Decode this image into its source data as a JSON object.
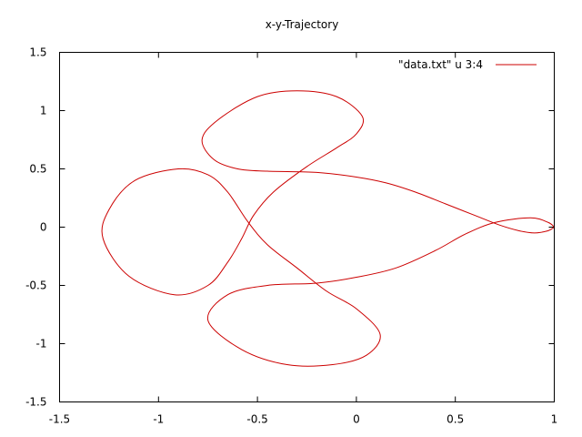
{
  "chart_data": {
    "type": "line",
    "title": "x-y-Trajectory",
    "xlabel": "",
    "ylabel": "",
    "xlim": [
      -1.5,
      1
    ],
    "ylim": [
      -1.5,
      1.5
    ],
    "x_ticks": [
      {
        "value": -1.5,
        "label": "-1.5"
      },
      {
        "value": -1,
        "label": "-1"
      },
      {
        "value": -0.5,
        "label": "-0.5"
      },
      {
        "value": 0,
        "label": "0"
      },
      {
        "value": 0.5,
        "label": "0.5"
      },
      {
        "value": 1,
        "label": "1"
      }
    ],
    "y_ticks": [
      {
        "value": -1.5,
        "label": "-1.5"
      },
      {
        "value": -1,
        "label": "-1"
      },
      {
        "value": -0.5,
        "label": "-0.5"
      },
      {
        "value": 0,
        "label": "0"
      },
      {
        "value": 0.5,
        "label": "0.5"
      },
      {
        "value": 1,
        "label": "1"
      },
      {
        "value": 1.5,
        "label": "1.5"
      }
    ],
    "grid": false,
    "legend": "top-right",
    "series": [
      {
        "name": "\"data.txt\" u 3:4",
        "color": "#cc0000",
        "points": [
          [
            1.0,
            0.0
          ],
          [
            0.97,
            -0.03
          ],
          [
            0.9,
            -0.05
          ],
          [
            0.82,
            -0.03
          ],
          [
            0.72,
            0.02
          ],
          [
            0.6,
            0.1
          ],
          [
            0.45,
            0.2
          ],
          [
            0.3,
            0.3
          ],
          [
            0.15,
            0.38
          ],
          [
            0.0,
            0.43
          ],
          [
            -0.2,
            0.47
          ],
          [
            -0.45,
            0.48
          ],
          [
            -0.6,
            0.5
          ],
          [
            -0.72,
            0.58
          ],
          [
            -0.78,
            0.75
          ],
          [
            -0.7,
            0.92
          ],
          [
            -0.5,
            1.12
          ],
          [
            -0.3,
            1.17
          ],
          [
            -0.1,
            1.12
          ],
          [
            0.03,
            0.95
          ],
          [
            0.0,
            0.8
          ],
          [
            -0.1,
            0.68
          ],
          [
            -0.25,
            0.52
          ],
          [
            -0.42,
            0.3
          ],
          [
            -0.52,
            0.1
          ],
          [
            -0.58,
            -0.1
          ],
          [
            -0.65,
            -0.3
          ],
          [
            -0.75,
            -0.5
          ],
          [
            -0.92,
            -0.58
          ],
          [
            -1.15,
            -0.42
          ],
          [
            -1.28,
            -0.1
          ],
          [
            -1.25,
            0.15
          ],
          [
            -1.12,
            0.4
          ],
          [
            -0.9,
            0.5
          ],
          [
            -0.75,
            0.45
          ],
          [
            -0.65,
            0.3
          ],
          [
            -0.55,
            0.05
          ],
          [
            -0.45,
            -0.15
          ],
          [
            -0.3,
            -0.35
          ],
          [
            -0.15,
            -0.55
          ],
          [
            0.0,
            -0.7
          ],
          [
            0.12,
            -0.92
          ],
          [
            0.05,
            -1.1
          ],
          [
            -0.12,
            -1.18
          ],
          [
            -0.35,
            -1.18
          ],
          [
            -0.58,
            -1.05
          ],
          [
            -0.75,
            -0.8
          ],
          [
            -0.65,
            -0.58
          ],
          [
            -0.45,
            -0.5
          ],
          [
            -0.2,
            -0.48
          ],
          [
            0.0,
            -0.43
          ],
          [
            0.2,
            -0.35
          ],
          [
            0.4,
            -0.2
          ],
          [
            0.55,
            -0.06
          ],
          [
            0.7,
            0.04
          ],
          [
            0.88,
            0.08
          ],
          [
            0.97,
            0.04
          ],
          [
            1.0,
            0.0
          ]
        ]
      }
    ]
  }
}
